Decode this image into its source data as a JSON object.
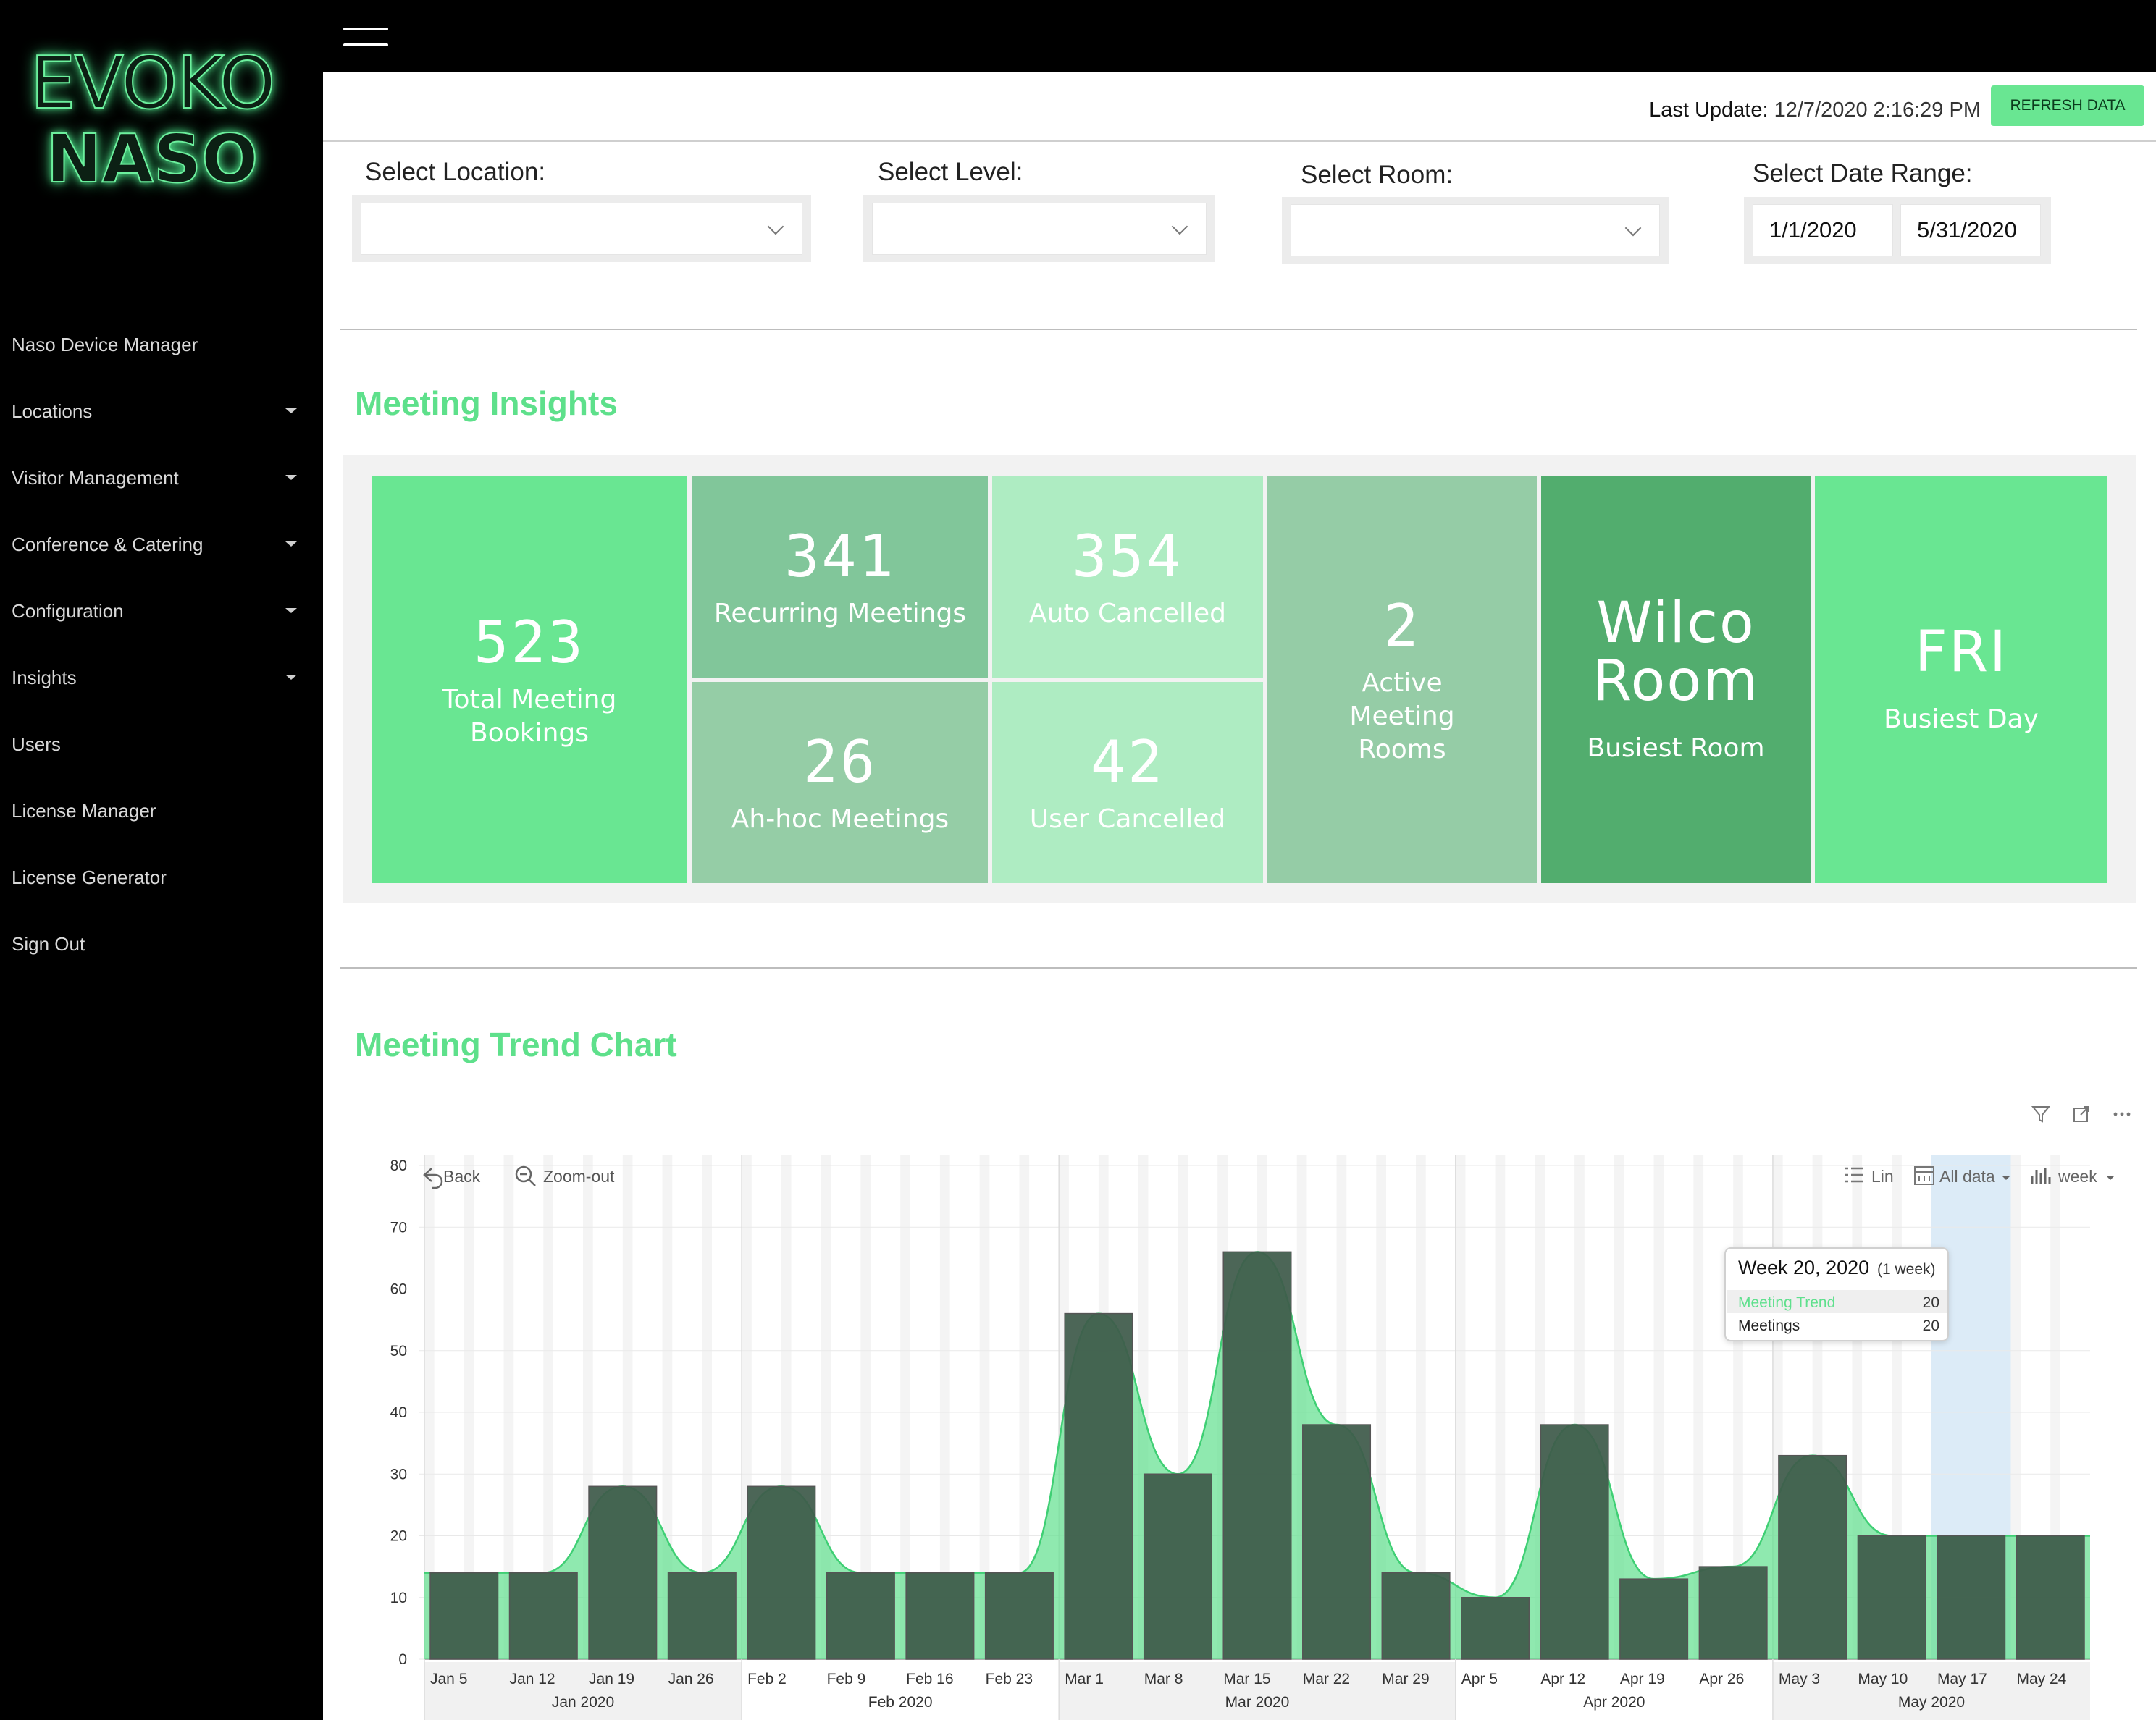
{
  "brand": {
    "line1": "EVOKO",
    "line2": "NASO",
    "accent": "#69e692"
  },
  "sidebar": {
    "items": [
      {
        "label": "Naso Device Manager",
        "has_caret": false
      },
      {
        "label": "Locations",
        "has_caret": true
      },
      {
        "label": "Visitor Management",
        "has_caret": true
      },
      {
        "label": "Conference & Catering",
        "has_caret": true
      },
      {
        "label": "Configuration",
        "has_caret": true
      },
      {
        "label": "Insights",
        "has_caret": true
      },
      {
        "label": "Users",
        "has_caret": false
      },
      {
        "label": "License Manager",
        "has_caret": false
      },
      {
        "label": "License Generator",
        "has_caret": false
      },
      {
        "label": "Sign Out",
        "has_caret": false
      }
    ]
  },
  "header": {
    "last_update_label": "Last Update:",
    "last_update_value": "12/7/2020 2:16:29 PM",
    "refresh_label": "REFRESH DATA"
  },
  "filters": {
    "location_label": "Select Location:",
    "location_value": "",
    "level_label": "Select Level:",
    "level_value": "",
    "room_label": "Select Room:",
    "room_value": "",
    "date_label": "Select Date Range:",
    "date_start": "1/1/2020",
    "date_end": "5/31/2020"
  },
  "insights": {
    "title": "Meeting Insights",
    "total": {
      "value": "523",
      "label": "Total Meeting Bookings"
    },
    "recurring": {
      "value": "341",
      "label": "Recurring Meetings"
    },
    "adhoc": {
      "value": "26",
      "label": "Ah-hoc Meetings"
    },
    "auto_cancelled": {
      "value": "354",
      "label": "Auto Cancelled"
    },
    "user_cancelled": {
      "value": "42",
      "label": "User Cancelled"
    },
    "active_rooms": {
      "value": "2",
      "label": "Active Meeting Rooms"
    },
    "busiest_room": {
      "value": "Wilco Room",
      "label": "Busiest Room"
    },
    "busiest_day": {
      "value": "FRI",
      "label": "Busiest Day"
    }
  },
  "trend": {
    "title": "Meeting Trend Chart",
    "toolbar": {
      "back": "Back",
      "zoom_out": "Zoom-out",
      "lin": "Lin",
      "all_data": "All data",
      "week": "week"
    },
    "tooltip": {
      "title": "Week 20, 2020",
      "subtitle": "(1 week)",
      "rows": [
        {
          "name": "Meeting Trend",
          "value": "20"
        },
        {
          "name": "Meetings",
          "value": "20"
        }
      ]
    }
  },
  "chart_data": {
    "type": "bar",
    "categories": [
      "Jan 5",
      "Jan 12",
      "Jan 19",
      "Jan 26",
      "Feb 2",
      "Feb 9",
      "Feb 16",
      "Feb 23",
      "Mar 1",
      "Mar 8",
      "Mar 15",
      "Mar 22",
      "Mar 29",
      "Apr 5",
      "Apr 12",
      "Apr 19",
      "Apr 26",
      "May 3",
      "May 10",
      "May 17",
      "May 24"
    ],
    "month_groups": [
      {
        "label": "Jan 2020",
        "start": 0,
        "end": 3
      },
      {
        "label": "Feb 2020",
        "start": 4,
        "end": 7
      },
      {
        "label": "Mar 2020",
        "start": 8,
        "end": 12
      },
      {
        "label": "Apr 2020",
        "start": 13,
        "end": 16
      },
      {
        "label": "May 2020",
        "start": 17,
        "end": 20
      }
    ],
    "series": [
      {
        "name": "Meetings",
        "type": "bar",
        "color": "#3e5a4a",
        "values": [
          14,
          14,
          28,
          14,
          28,
          14,
          14,
          14,
          56,
          30,
          66,
          38,
          14,
          10,
          38,
          13,
          15,
          33,
          20,
          20,
          20
        ]
      },
      {
        "name": "Meeting Trend",
        "type": "area",
        "color": "#5fe08d",
        "values": [
          14,
          14,
          28,
          14,
          28,
          14,
          14,
          14,
          56,
          30,
          66,
          38,
          14,
          10,
          38,
          13,
          15,
          33,
          20,
          20,
          20
        ]
      }
    ],
    "ylim": [
      0,
      80
    ],
    "yticks": [
      0,
      10,
      20,
      30,
      40,
      50,
      60,
      70,
      80
    ],
    "highlighted_category": "May 17",
    "grid": true
  }
}
